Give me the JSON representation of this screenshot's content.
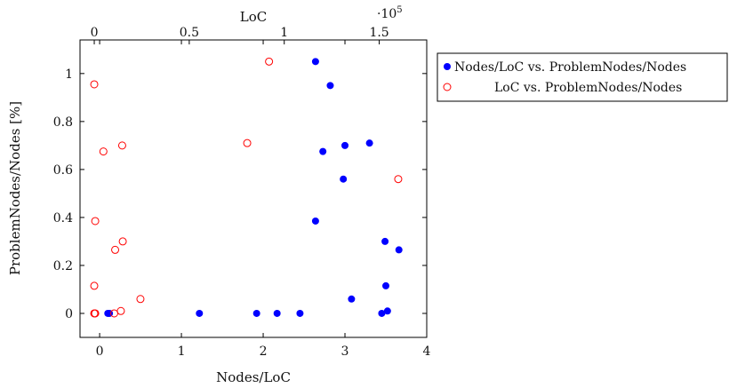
{
  "chart_data": {
    "type": "scatter",
    "xlabel": "Nodes/LoC",
    "ylabel": "ProblemNodes/Nodes [%]",
    "x2label": "LoC",
    "x2_multiplier": "·10",
    "x2_multiplier_exp": "5",
    "xlim": [
      -0.24,
      4
    ],
    "ylim": [
      -0.1,
      1.14
    ],
    "x2lim": [
      -0.075,
      1.75
    ],
    "xticks": [
      0,
      1,
      2,
      3,
      4
    ],
    "yticks": [
      0,
      0.2,
      0.4,
      0.6,
      0.8,
      1
    ],
    "x2ticks": [
      0,
      0.5,
      1,
      1.5
    ],
    "legend_position": "outside-right-top",
    "series": [
      {
        "name": "Nodes/LoC vs. ProblemNodes/Nodes",
        "axis": "bottom",
        "marker": "filled-circle",
        "color": "#0000ff",
        "points": [
          [
            0.1,
            0
          ],
          [
            0.12,
            0
          ],
          [
            1.22,
            0
          ],
          [
            1.92,
            0
          ],
          [
            2.17,
            0
          ],
          [
            2.45,
            0
          ],
          [
            2.64,
            1.05
          ],
          [
            2.82,
            0.95
          ],
          [
            2.73,
            0.675
          ],
          [
            2.98,
            0.56
          ],
          [
            3.0,
            0.7
          ],
          [
            3.3,
            0.71
          ],
          [
            2.64,
            0.385
          ],
          [
            3.08,
            0.06
          ],
          [
            3.45,
            0
          ],
          [
            3.52,
            0.01
          ],
          [
            3.5,
            0.115
          ],
          [
            3.49,
            0.3
          ],
          [
            3.66,
            0.265
          ]
        ]
      },
      {
        "name": "LoC vs. ProblemNodes/Nodes",
        "axis": "top",
        "marker": "open-circle",
        "color": "#ff0000",
        "points": [
          [
            0.0,
            0.955
          ],
          [
            0.005,
            0.385
          ],
          [
            0.0,
            0.115
          ],
          [
            0.0,
            0
          ],
          [
            0.002,
            0
          ],
          [
            0.005,
            0
          ],
          [
            0.048,
            0.675
          ],
          [
            0.147,
            0.7
          ],
          [
            0.15,
            0.3
          ],
          [
            0.11,
            0.265
          ],
          [
            0.105,
            0
          ],
          [
            0.14,
            0.01
          ],
          [
            0.243,
            0.06
          ],
          [
            0.805,
            0.71
          ],
          [
            0.92,
            1.05
          ],
          [
            1.6,
            0.56
          ]
        ]
      }
    ]
  }
}
